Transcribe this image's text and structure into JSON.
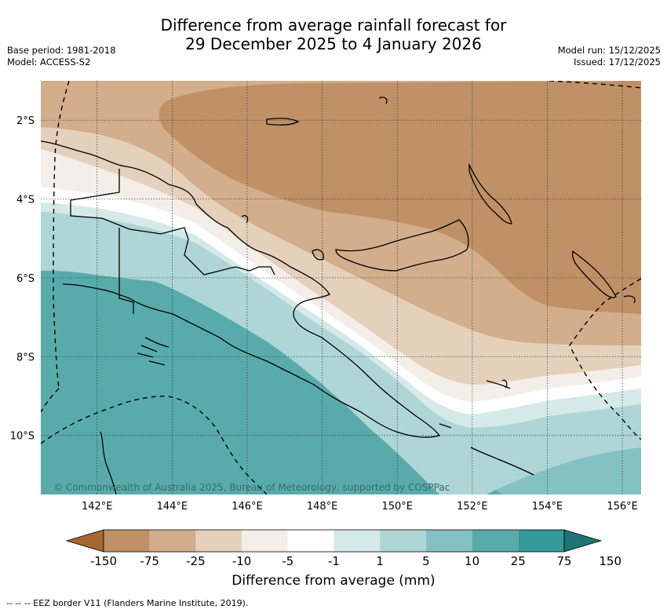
{
  "header": {
    "title_line1": "Difference from average rainfall forecast for",
    "title_line2": "29 December 2025 to 4 January 2026",
    "base_period": "Base period: 1981-2018",
    "model": "Model: ACCESS-S2",
    "model_run": "Model run: 15/12/2025",
    "issued": "Issued: 17/12/2025"
  },
  "map": {
    "lon_ticks": [
      "142°E",
      "144°E",
      "146°E",
      "148°E",
      "150°E",
      "152°E",
      "154°E",
      "156°E"
    ],
    "lat_ticks": [
      "2°S",
      "4°S",
      "6°S",
      "8°S",
      "10°S"
    ],
    "lon_range": [
      140.5,
      156.5
    ],
    "lat_range": [
      -11.5,
      -1.0
    ],
    "copyright": "© Commonwealth of Australia 2025, Bureau of Meteorology, supported by COSPPac"
  },
  "colorbar": {
    "ticks": [
      "-150",
      "-75",
      "-25",
      "-10",
      "-5",
      "-1",
      "1",
      "5",
      "10",
      "25",
      "75",
      "150"
    ],
    "colors": [
      "#a6672e",
      "#c09166",
      "#d2ae8c",
      "#e5d0bc",
      "#f3eee8",
      "#ffffff",
      "#d5e9e9",
      "#aed6d6",
      "#84c1c2",
      "#59abab",
      "#33999a",
      "#1f7373"
    ],
    "label": "Difference from average (mm)"
  },
  "footnote": "--  --  -- EEZ border V11 (Flanders Marine Institute, 2019).",
  "colors": {
    "dry_strong": "#c09166",
    "dry_mod": "#d2ae8c",
    "dry_light": "#e5d0bc",
    "dry_faint": "#f3eee8",
    "wet_faint": "#d5e9e9",
    "wet_light": "#aed6d6",
    "wet_mod": "#84c1c2",
    "wet_strong": "#59abab"
  }
}
